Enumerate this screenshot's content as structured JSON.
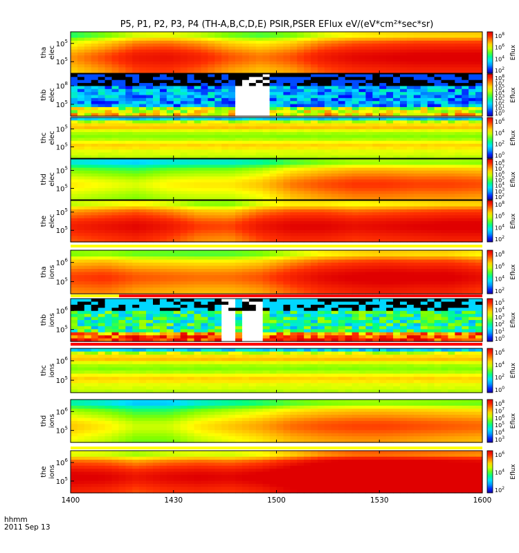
{
  "title": "P5, P1, P2, P3, P4 (TH-A,B,C,D,E) PSIR,PSER EFlux eV/(eV*cm²*sec*sr)",
  "footer": {
    "time_label": "hhmm",
    "date_label": "2011 Sep 13"
  },
  "colorbar_label": "Eflux",
  "x_axis": {
    "ticks": [
      "1400",
      "1430",
      "1500",
      "1530",
      "1600"
    ],
    "range": [
      "14:00",
      "16:00"
    ]
  },
  "palette": [
    "#ffffff",
    "#000000",
    "#4b0082",
    "#0000ff",
    "#00bfff",
    "#00ff7f",
    "#adff2f",
    "#ffff00",
    "#ffa500",
    "#ff0000"
  ],
  "chart_data": [
    {
      "type": "heatmap",
      "probe": "tha",
      "species": "elec",
      "ylabel": [
        "tha",
        "elec"
      ],
      "y_ticks": [
        {
          "base": "10",
          "exp": "5"
        },
        {
          "base": "10",
          "exp": "5"
        }
      ],
      "colorbar_ticks": [
        {
          "base": "10",
          "exp": "8"
        },
        {
          "base": "10",
          "exp": "6"
        },
        {
          "base": "10",
          "exp": "4"
        },
        {
          "base": "10",
          "exp": "2"
        }
      ],
      "colorbar_range_exp": [
        1,
        8
      ],
      "style": "smooth",
      "profile": [
        5.8,
        6.3,
        6.9,
        7.0,
        6.7,
        6.2,
        5.9,
        6.2,
        6.8,
        7.1,
        7.2,
        7.3,
        7.3,
        7.3
      ],
      "noise": 0
    },
    {
      "type": "heatmap",
      "probe": "thb",
      "species": "elec",
      "ylabel": [
        "thb",
        "elec"
      ],
      "y_ticks": [
        {
          "base": "10",
          "exp": "8"
        },
        {
          "base": "10",
          "exp": "5"
        }
      ],
      "colorbar_ticks": [
        {
          "base": "10",
          "exp": "8"
        },
        {
          "base": "10",
          "exp": "7"
        },
        {
          "base": "10",
          "exp": "5"
        },
        {
          "base": "10",
          "exp": "4"
        },
        {
          "base": "10",
          "exp": "3"
        },
        {
          "base": "10",
          "exp": "2"
        },
        {
          "base": "10",
          "exp": "1"
        },
        {
          "base": "10",
          "exp": "0"
        }
      ],
      "colorbar_range_exp": [
        0,
        8
      ],
      "style": "sparse",
      "gaps": [
        [
          14.8,
          14.95
        ]
      ],
      "noise": 1
    },
    {
      "type": "heatmap",
      "probe": "thc",
      "species": "elec",
      "ylabel": [
        "thc",
        "elec"
      ],
      "y_ticks": [
        {
          "base": "10",
          "exp": "5"
        },
        {
          "base": "10",
          "exp": "5"
        }
      ],
      "colorbar_ticks": [
        {
          "base": "10",
          "exp": "6"
        },
        {
          "base": "10",
          "exp": "4"
        },
        {
          "base": "10",
          "exp": "2"
        },
        {
          "base": "10",
          "exp": "0"
        }
      ],
      "colorbar_range_exp": [
        -1,
        7
      ],
      "style": "bands",
      "noise": 0.3
    },
    {
      "type": "heatmap",
      "probe": "thd",
      "species": "elec",
      "ylabel": [
        "thd",
        "elec"
      ],
      "y_ticks": [
        {
          "base": "10",
          "exp": "5"
        },
        {
          "base": "10",
          "exp": "5"
        }
      ],
      "colorbar_ticks": [
        {
          "base": "10",
          "exp": "8"
        },
        {
          "base": "10",
          "exp": "7"
        },
        {
          "base": "10",
          "exp": "6"
        },
        {
          "base": "10",
          "exp": "5"
        },
        {
          "base": "10",
          "exp": "4"
        },
        {
          "base": "10",
          "exp": "3"
        },
        {
          "base": "10",
          "exp": "2"
        }
      ],
      "colorbar_range_exp": [
        2,
        9
      ],
      "style": "smooth",
      "profile": [
        6.0,
        5.8,
        5.6,
        5.9,
        6.0,
        6.0,
        6.3,
        6.9,
        7.2,
        7.4,
        7.4,
        7.3,
        7.3,
        7.2
      ],
      "noise": 0
    },
    {
      "type": "heatmap",
      "probe": "the",
      "species": "elec",
      "ylabel": [
        "the",
        "elec"
      ],
      "y_ticks": [
        {
          "base": "10",
          "exp": "5"
        },
        {
          "base": "10",
          "exp": "5"
        }
      ],
      "colorbar_ticks": [
        {
          "base": "10",
          "exp": "8"
        },
        {
          "base": "10",
          "exp": "6"
        },
        {
          "base": "10",
          "exp": "4"
        },
        {
          "base": "10",
          "exp": "2"
        }
      ],
      "colorbar_range_exp": [
        1,
        8
      ],
      "style": "smooth",
      "profile": [
        6.8,
        7.0,
        7.2,
        6.9,
        6.4,
        6.3,
        6.9,
        7.2,
        7.2,
        7.0,
        7.1,
        7.2,
        7.3,
        7.3
      ],
      "noise": 0
    },
    {
      "type": "heatmap",
      "probe": "tha",
      "species": "ions",
      "ylabel": [
        "tha",
        "ions"
      ],
      "y_ticks": [
        {
          "base": "10",
          "exp": "6"
        },
        {
          "base": "10",
          "exp": "5"
        }
      ],
      "colorbar_ticks": [
        {
          "base": "10",
          "exp": "8"
        },
        {
          "base": "10",
          "exp": "6"
        },
        {
          "base": "10",
          "exp": "4"
        },
        {
          "base": "10",
          "exp": "2"
        }
      ],
      "colorbar_range_exp": [
        1,
        8
      ],
      "style": "smooth",
      "profile": [
        6.4,
        6.5,
        6.2,
        6.1,
        6.0,
        6.0,
        6.2,
        6.7,
        7.1,
        7.3,
        7.4,
        7.3,
        7.3,
        7.0
      ],
      "noise": 0
    },
    {
      "type": "heatmap",
      "probe": "thb",
      "species": "ions",
      "ylabel": [
        "thb",
        "ions"
      ],
      "y_ticks": [
        {
          "base": "10",
          "exp": "6"
        },
        {
          "base": "10",
          "exp": "5"
        }
      ],
      "colorbar_ticks": [
        {
          "base": "10",
          "exp": "5"
        },
        {
          "base": "10",
          "exp": "4"
        },
        {
          "base": "10",
          "exp": "3"
        },
        {
          "base": "10",
          "exp": "2"
        },
        {
          "base": "10",
          "exp": "1"
        },
        {
          "base": "10",
          "exp": "0"
        }
      ],
      "colorbar_range_exp": [
        -1,
        6
      ],
      "style": "sparse",
      "gaps": [
        [
          14.72,
          14.78
        ],
        [
          14.84,
          14.92
        ]
      ],
      "noise": 1
    },
    {
      "type": "heatmap",
      "probe": "thc",
      "species": "ions",
      "ylabel": [
        "thc",
        "ions"
      ],
      "y_ticks": [
        {
          "base": "10",
          "exp": "6"
        },
        {
          "base": "10",
          "exp": "5"
        }
      ],
      "colorbar_ticks": [
        {
          "base": "10",
          "exp": "6"
        },
        {
          "base": "10",
          "exp": "4"
        },
        {
          "base": "10",
          "exp": "2"
        },
        {
          "base": "10",
          "exp": "0"
        }
      ],
      "colorbar_range_exp": [
        -1,
        7
      ],
      "style": "bands",
      "noise": 0.3
    },
    {
      "type": "heatmap",
      "probe": "thd",
      "species": "ions",
      "ylabel": [
        "thd",
        "ions"
      ],
      "y_ticks": [
        {
          "base": "10",
          "exp": "6"
        },
        {
          "base": "10",
          "exp": "5"
        }
      ],
      "colorbar_ticks": [
        {
          "base": "10",
          "exp": "8"
        },
        {
          "base": "10",
          "exp": "7"
        },
        {
          "base": "10",
          "exp": "6"
        },
        {
          "base": "10",
          "exp": "5"
        },
        {
          "base": "10",
          "exp": "4"
        },
        {
          "base": "10",
          "exp": "3"
        }
      ],
      "colorbar_range_exp": [
        2,
        9
      ],
      "style": "smooth",
      "profile": [
        6.3,
        6.0,
        5.5,
        5.5,
        6.0,
        6.3,
        6.6,
        7.0,
        7.2,
        7.3,
        7.3,
        7.2,
        7.1,
        7.0
      ],
      "noise": 0
    },
    {
      "type": "heatmap",
      "probe": "the",
      "species": "ions",
      "ylabel": [
        "the",
        "ions"
      ],
      "y_ticks": [
        {
          "base": "10",
          "exp": "6"
        },
        {
          "base": "10",
          "exp": "5"
        }
      ],
      "colorbar_ticks": [
        {
          "base": "10",
          "exp": "6"
        },
        {
          "base": "10",
          "exp": "4"
        },
        {
          "base": "10",
          "exp": "2"
        }
      ],
      "colorbar_range_exp": [
        1,
        7
      ],
      "style": "smooth",
      "profile": [
        6.4,
        6.3,
        6.0,
        6.2,
        6.3,
        6.2,
        6.4,
        6.8,
        7.2,
        7.4,
        7.4,
        7.3,
        7.2,
        7.1
      ],
      "noise": 0
    }
  ]
}
